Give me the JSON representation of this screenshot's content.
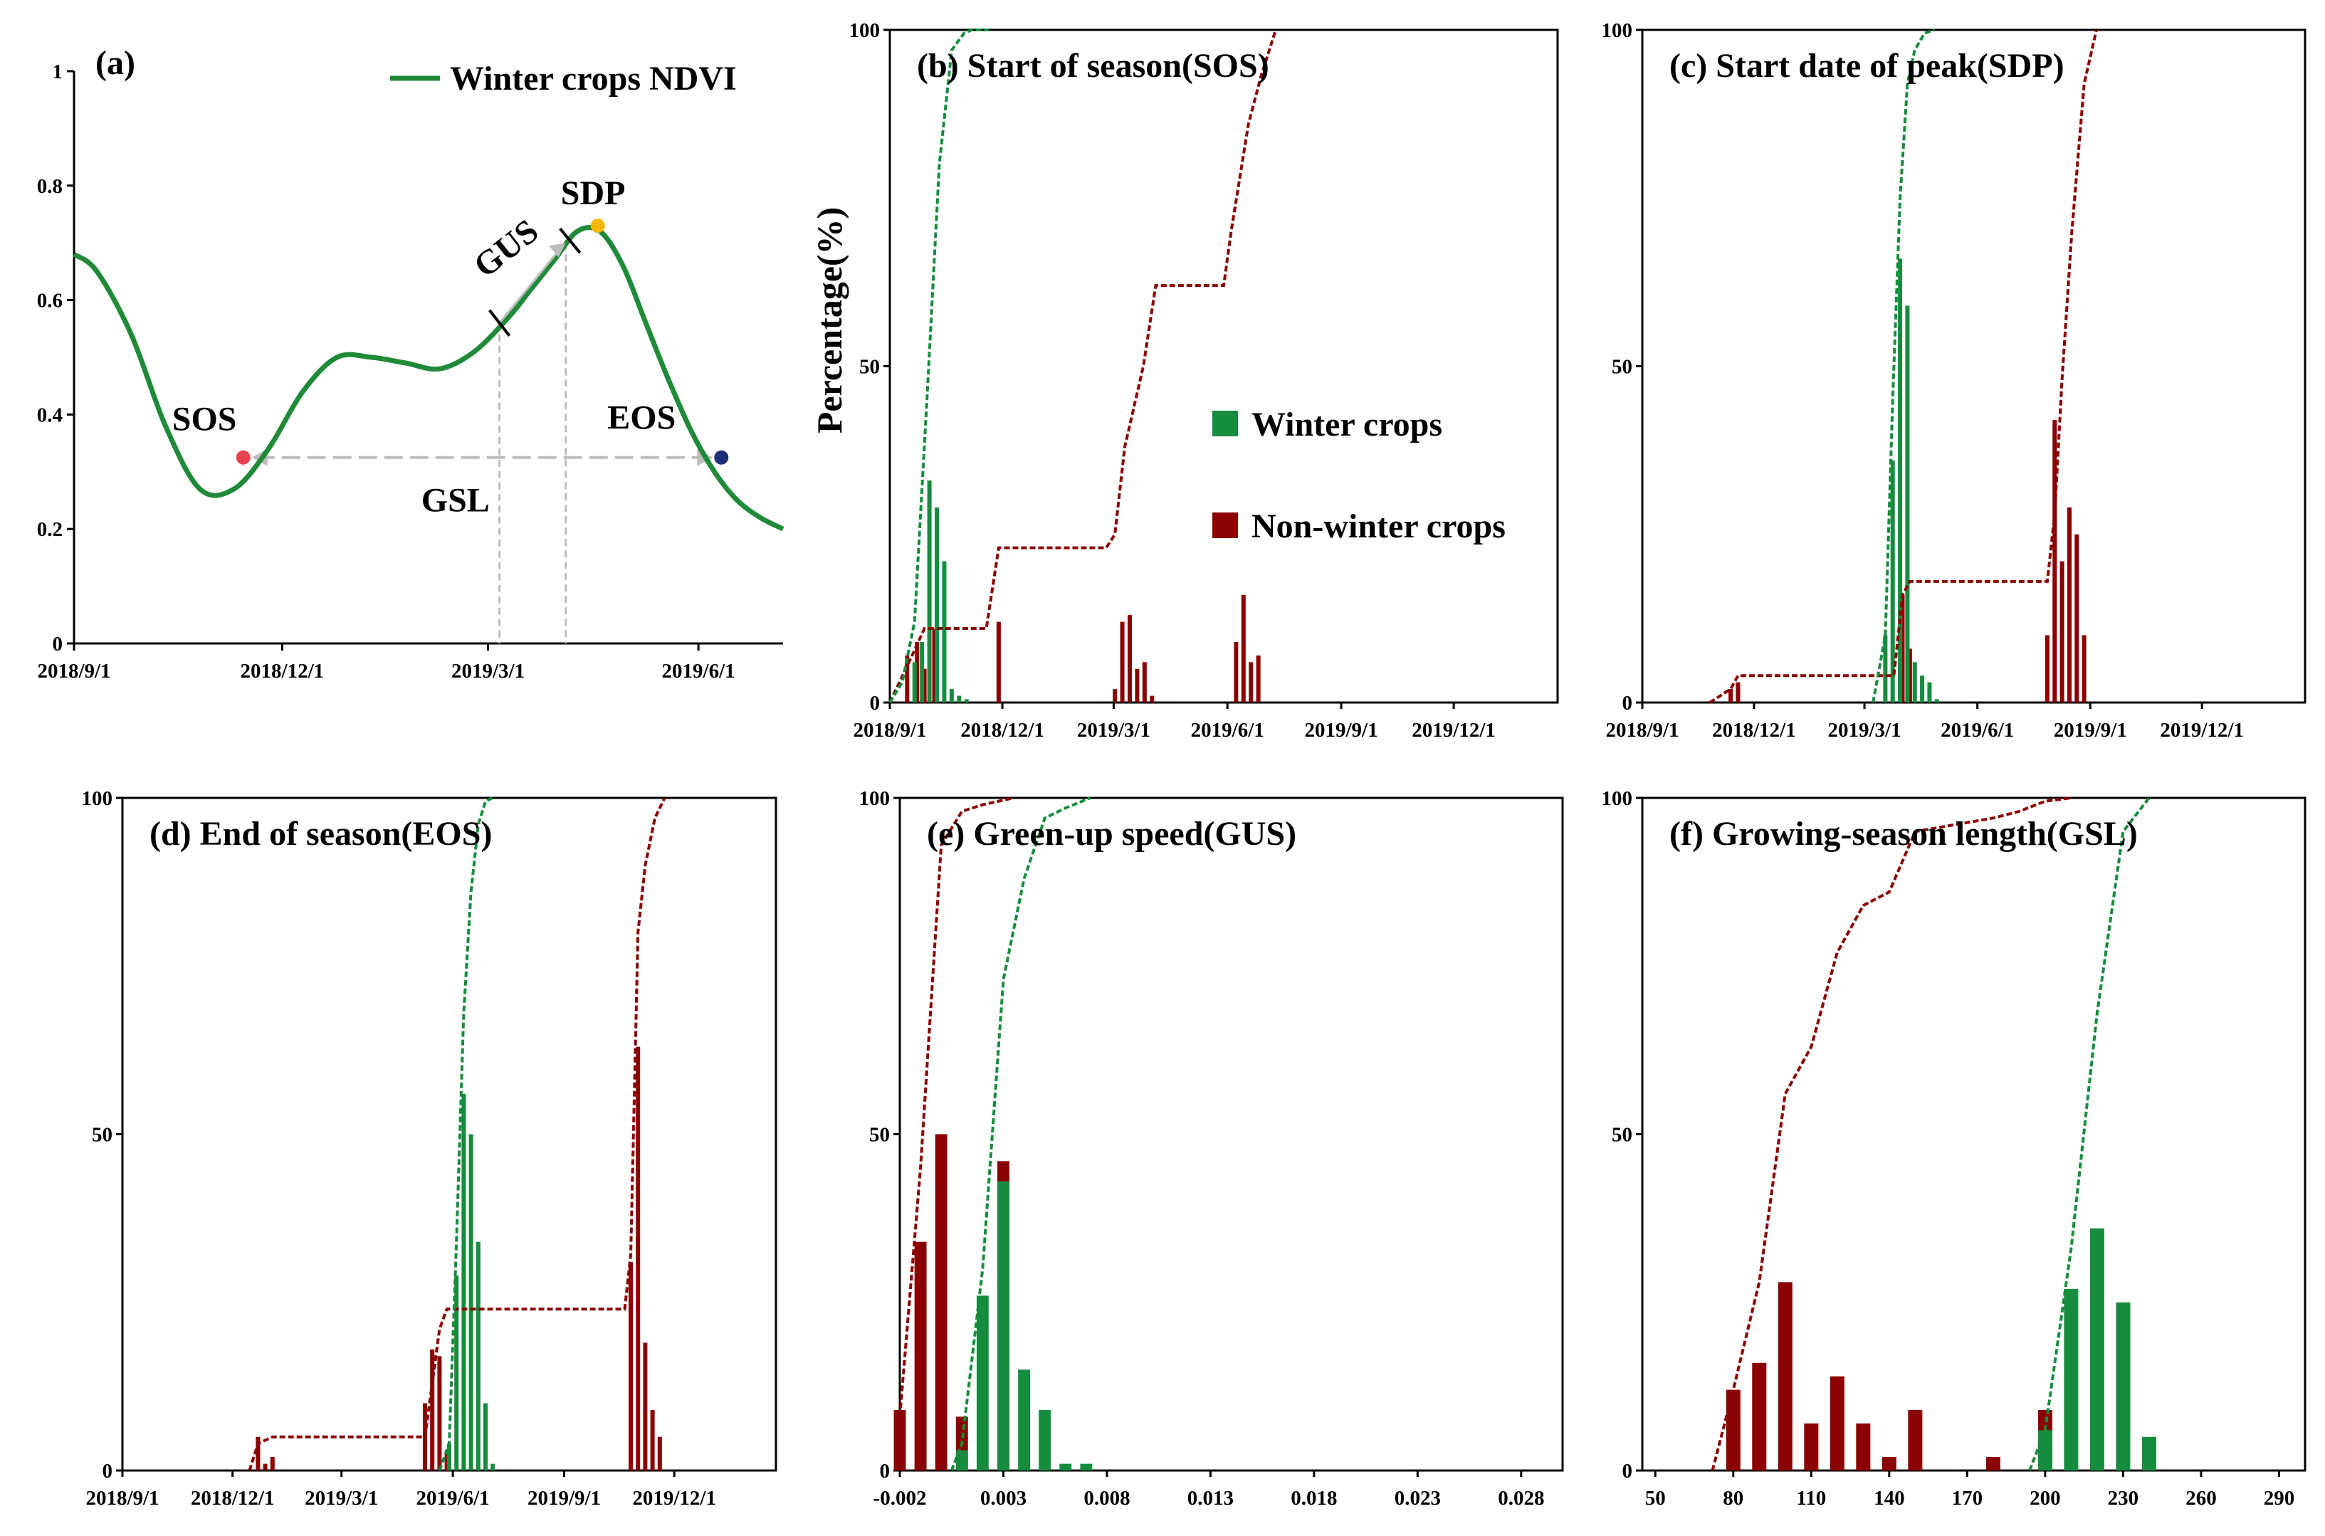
{
  "colors": {
    "winter": "#168c3e",
    "nonwinter": "#8b0000",
    "ndvi": "#1f8a38",
    "guide": "#bdbdbd",
    "sos_dot": "#e8434b",
    "sdp_dot": "#f5b800",
    "eos_dot": "#1f2f7a"
  },
  "legend": {
    "winter": "Winter crops",
    "nonwinter": "Non-winter crops"
  },
  "ylabel": "Percentage(%)",
  "chart_data": [
    {
      "id": "a",
      "type": "line",
      "title": "(a)",
      "legend_label": "Winter crops NDVI",
      "ylim": [
        0,
        1
      ],
      "yticks": [
        0,
        0.2,
        0.4,
        0.6,
        0.8,
        1
      ],
      "ytick_labels": [
        "0",
        "0.2",
        "0.4",
        "0.6",
        "0.8",
        "1"
      ],
      "xlim": [
        0,
        310
      ],
      "xticks": [
        0,
        91,
        181,
        273
      ],
      "xtick_labels": [
        "2018/9/1",
        "2018/12/1",
        "2019/3/1",
        "2019/6/1"
      ],
      "x": [
        0,
        10,
        25,
        40,
        55,
        70,
        85,
        100,
        115,
        130,
        145,
        160,
        175,
        190,
        200,
        210,
        220,
        230,
        240,
        250,
        260,
        270,
        280,
        290,
        300,
        310
      ],
      "y": [
        0.68,
        0.65,
        0.54,
        0.38,
        0.27,
        0.27,
        0.34,
        0.44,
        0.5,
        0.5,
        0.49,
        0.48,
        0.51,
        0.57,
        0.62,
        0.67,
        0.72,
        0.72,
        0.66,
        0.56,
        0.46,
        0.37,
        0.3,
        0.25,
        0.22,
        0.2
      ],
      "markers": [
        {
          "label": "SOS",
          "x": 74,
          "y": 0.325
        },
        {
          "label": "SDP",
          "x": 229,
          "y": 0.73
        },
        {
          "label": "EOS",
          "x": 283,
          "y": 0.325
        }
      ],
      "annotations": {
        "gus": "GUS",
        "gsl": "GSL"
      },
      "gus_range": [
        186,
        215
      ]
    },
    {
      "id": "b",
      "type": "bar",
      "title": "(b) Start of season(SOS)",
      "xlim": [
        0,
        540
      ],
      "ylim": [
        0,
        100
      ],
      "yticks": [
        0,
        50,
        100
      ],
      "xticks": [
        0,
        91,
        181,
        273,
        365,
        456
      ],
      "xtick_labels": [
        "2018/9/1",
        "2018/12/1",
        "2019/3/1",
        "2019/6/1",
        "2019/9/1",
        "2019/12/1"
      ],
      "winter": {
        "x": [
          20,
          26,
          32,
          38,
          44,
          50,
          56,
          62,
          68
        ],
        "values": [
          6,
          9,
          33,
          29,
          21,
          2,
          1,
          0.5,
          0
        ],
        "cumulative": {
          "x": [
            0,
            10,
            20,
            30,
            40,
            50,
            60,
            66,
            80
          ],
          "y": [
            0,
            3,
            12,
            45,
            80,
            97,
            99.5,
            100,
            100
          ]
        }
      },
      "nonwinter": {
        "x": [
          14,
          22,
          28,
          36,
          88,
          182,
          188,
          194,
          200,
          206,
          212,
          280,
          286,
          292,
          298
        ],
        "values": [
          7,
          9,
          5,
          11,
          12,
          2,
          12,
          13,
          5,
          6,
          1,
          9,
          16,
          6,
          7
        ],
        "cumulative": {
          "x": [
            0,
            18,
            28,
            34,
            50,
            78,
            88,
            95,
            175,
            182,
            190,
            205,
            215,
            270,
            276,
            290,
            300,
            312
          ],
          "y": [
            0,
            7,
            11,
            11,
            11,
            11,
            23,
            23,
            23,
            25,
            38,
            50,
            62,
            62,
            70,
            86,
            93,
            100
          ]
        }
      }
    },
    {
      "id": "c",
      "type": "bar",
      "title": "(c) Start date of peak(SDP)",
      "xlim": [
        0,
        540
      ],
      "ylim": [
        0,
        100
      ],
      "yticks": [
        0,
        50,
        100
      ],
      "xticks": [
        0,
        91,
        181,
        273,
        365,
        456
      ],
      "xtick_labels": [
        "2018/9/1",
        "2018/12/1",
        "2019/3/1",
        "2019/6/1",
        "2019/9/1",
        "2019/12/1"
      ],
      "winter": {
        "x": [
          198,
          204,
          210,
          216,
          222,
          228,
          234,
          240
        ],
        "values": [
          10,
          36,
          66,
          59,
          6,
          4,
          3,
          0.5
        ],
        "cumulative": {
          "x": [
            188,
            198,
            204,
            210,
            216,
            222,
            230,
            238
          ],
          "y": [
            0,
            10,
            45,
            75,
            92,
            97,
            99.5,
            100
          ]
        }
      },
      "nonwinter": {
        "x": [
          72,
          78,
          212,
          218,
          330,
          336,
          342,
          348,
          354,
          360
        ],
        "values": [
          2,
          3,
          16,
          8,
          10,
          42,
          21,
          29,
          25,
          10
        ],
        "cumulative": {
          "x": [
            55,
            72,
            78,
            205,
            212,
            218,
            330,
            336,
            342,
            350,
            360,
            370
          ],
          "y": [
            0,
            2,
            4,
            4,
            16,
            18,
            18,
            28,
            48,
            70,
            92,
            100
          ]
        }
      }
    },
    {
      "id": "d",
      "type": "bar",
      "title": "(d) End of season(EOS)",
      "xlim": [
        0,
        540
      ],
      "ylim": [
        0,
        100
      ],
      "yticks": [
        0,
        50,
        100
      ],
      "xticks": [
        0,
        91,
        181,
        273,
        365,
        456
      ],
      "xtick_labels": [
        "2018/9/1",
        "2018/12/1",
        "2019/3/1",
        "2019/6/1",
        "2019/9/1",
        "2019/12/1"
      ],
      "winter": {
        "x": [
          270,
          276,
          282,
          288,
          294,
          300,
          306
        ],
        "values": [
          4,
          29,
          56,
          50,
          34,
          10,
          1
        ],
        "cumulative": {
          "x": [
            262,
            270,
            276,
            282,
            288,
            294,
            300,
            306
          ],
          "y": [
            0,
            4,
            34,
            68,
            86,
            96,
            99.5,
            100
          ]
        }
      },
      "nonwinter": {
        "x": [
          112,
          118,
          124,
          250,
          256,
          262,
          268,
          420,
          426,
          432,
          438,
          444
        ],
        "values": [
          5,
          1,
          2,
          10,
          18,
          17,
          3,
          31,
          63,
          19,
          9,
          5
        ],
        "cumulative": {
          "x": [
            105,
            112,
            124,
            250,
            262,
            268,
            415,
            420,
            426,
            432,
            440,
            448
          ],
          "y": [
            0,
            4,
            5,
            5,
            21,
            24,
            24,
            32,
            80,
            90,
            97,
            100
          ]
        }
      }
    },
    {
      "id": "e",
      "type": "bar",
      "title": "(e) Green-up speed(GUS)",
      "xlim": [
        -0.002,
        0.03
      ],
      "ylim": [
        0,
        100
      ],
      "yticks": [
        0,
        50,
        100
      ],
      "xticks": [
        -0.002,
        0.003,
        0.008,
        0.013,
        0.018,
        0.023,
        0.028
      ],
      "xtick_labels": [
        "-0.002",
        "0.003",
        "0.008",
        "0.013",
        "0.018",
        "0.023",
        "0.028"
      ],
      "winter": {
        "x": [
          0.001,
          0.002,
          0.003,
          0.004,
          0.005,
          0.006,
          0.007
        ],
        "values": [
          3,
          26,
          43,
          15,
          9,
          1,
          1
        ],
        "cumulative": {
          "x": [
            0.0005,
            0.001,
            0.002,
            0.003,
            0.004,
            0.005,
            0.006,
            0.0072
          ],
          "y": [
            0,
            4,
            30,
            73,
            88,
            97,
            98.5,
            100
          ]
        }
      },
      "nonwinter": {
        "x": [
          -0.002,
          -0.001,
          0.0,
          0.001,
          0.003
        ],
        "values": [
          9,
          34,
          50,
          8,
          46
        ],
        "cumulative": {
          "x": [
            -0.002,
            -0.001,
            0.0,
            0.001,
            0.002,
            0.0035
          ],
          "y": [
            8,
            45,
            93,
            98,
            99,
            100
          ]
        }
      }
    },
    {
      "id": "f",
      "type": "bar",
      "title": "(f) Growing-season length(GSL)",
      "xlim": [
        45,
        300
      ],
      "ylim": [
        0,
        100
      ],
      "yticks": [
        0,
        50,
        100
      ],
      "xticks": [
        50,
        80,
        110,
        140,
        170,
        200,
        230,
        260,
        290
      ],
      "xtick_labels": [
        "50",
        "80",
        "110",
        "140",
        "170",
        "200",
        "230",
        "260",
        "290"
      ],
      "winter": {
        "x": [
          200,
          210,
          220,
          230,
          240
        ],
        "values": [
          6,
          27,
          36,
          25,
          5
        ],
        "cumulative": {
          "x": [
            194,
            200,
            210,
            220,
            230,
            240
          ],
          "y": [
            0,
            6,
            33,
            68,
            95,
            100
          ]
        }
      },
      "nonwinter": {
        "x": [
          80,
          90,
          100,
          110,
          120,
          130,
          140,
          150,
          180,
          200
        ],
        "values": [
          12,
          16,
          28,
          7,
          14,
          7,
          2,
          9,
          2,
          9
        ],
        "cumulative": {
          "x": [
            72,
            80,
            90,
            100,
            110,
            120,
            130,
            140,
            150,
            180,
            190,
            200,
            210
          ],
          "y": [
            0,
            12,
            28,
            56,
            63,
            77,
            84,
            86,
            95,
            97,
            98,
            99.5,
            100
          ]
        }
      }
    }
  ]
}
